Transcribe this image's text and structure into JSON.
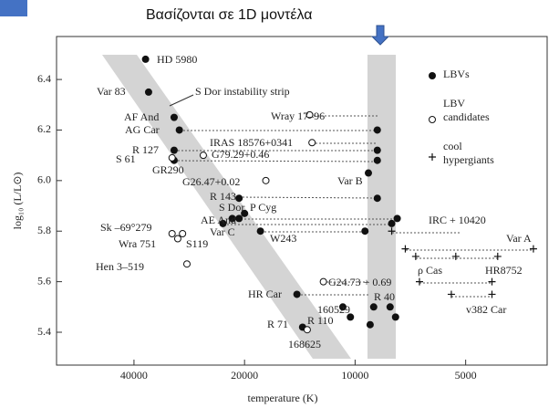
{
  "slide": {
    "title": "Βασίζονται σε 1D μοντέλα"
  },
  "chart_data": {
    "type": "scatter",
    "xlabel": "temperature (K)",
    "ylabel": "log₁₀ (L/L⊙)",
    "xlim": [
      65000,
      3000
    ],
    "xscale": "log",
    "xticks": [
      40000,
      20000,
      10000,
      5000
    ],
    "ylim": [
      5.27,
      6.57
    ],
    "yticks": [
      5.4,
      5.6,
      5.8,
      {
        "value": 6,
        "label": "6.0"
      },
      6.2,
      6.4
    ],
    "series": [
      {
        "name": "LBVs",
        "marker": "filled",
        "color": "#111111",
        "x": [
          37200,
          36500,
          31100,
          30100,
          31100,
          31100,
          20700,
          20000,
          20700,
          21600,
          22900,
          18100,
          9200,
          8700,
          8700,
          8700,
          8700,
          9400,
          7950,
          7680,
          14400,
          8900,
          10800,
          10300,
          8030,
          7760,
          13900,
          9100
        ],
        "y": [
          6.48,
          6.35,
          6.25,
          6.2,
          6.12,
          6.08,
          5.93,
          5.87,
          5.85,
          5.85,
          5.83,
          5.8,
          6.03,
          6.2,
          6.12,
          6.08,
          5.93,
          5.8,
          5.83,
          5.85,
          5.55,
          5.5,
          5.5,
          5.46,
          5.5,
          5.46,
          5.42,
          5.43
        ]
      },
      {
        "name": "LBV candidates",
        "marker": "open",
        "color": "#111111",
        "x": [
          13300,
          13100,
          25900,
          31500,
          17500,
          31500,
          30400,
          29500,
          28700,
          12200,
          13500
        ],
        "y": [
          6.26,
          6.15,
          6.1,
          6.09,
          6.0,
          5.79,
          5.77,
          5.79,
          5.67,
          5.6,
          5.41
        ]
      },
      {
        "name": "cool hypergiants",
        "marker": "plus",
        "color": "#111111",
        "x": [
          7950,
          7300,
          3270,
          6840,
          5320,
          4090,
          6680,
          4240,
          5470,
          4240
        ],
        "y": [
          5.8,
          5.73,
          5.73,
          5.7,
          5.7,
          5.7,
          5.6,
          5.6,
          5.55,
          5.55
        ]
      }
    ],
    "annotations": [
      "HD 5980",
      "Var 83",
      "S Dor instability strip",
      "AF And",
      "AG Car",
      "Wray 17–96",
      "IRAS 18576+0341",
      "R 127",
      "G79.29+0.46",
      "S 61",
      "GR290",
      "G26.47+0.02",
      "Var B",
      "R 143",
      "S Dor",
      "P Cyg",
      "AE And",
      "Var C",
      "W243",
      "Sk –69°279",
      "Wra 751",
      "S119",
      "Hen 3–519",
      "IRC + 10420",
      "Var A",
      "ρ Cas",
      "HR8752",
      "v382 Car",
      "G24.73 + 0.69",
      "HR Car",
      "R 40",
      "160529",
      "R 110",
      "R 71",
      "168625"
    ]
  }
}
